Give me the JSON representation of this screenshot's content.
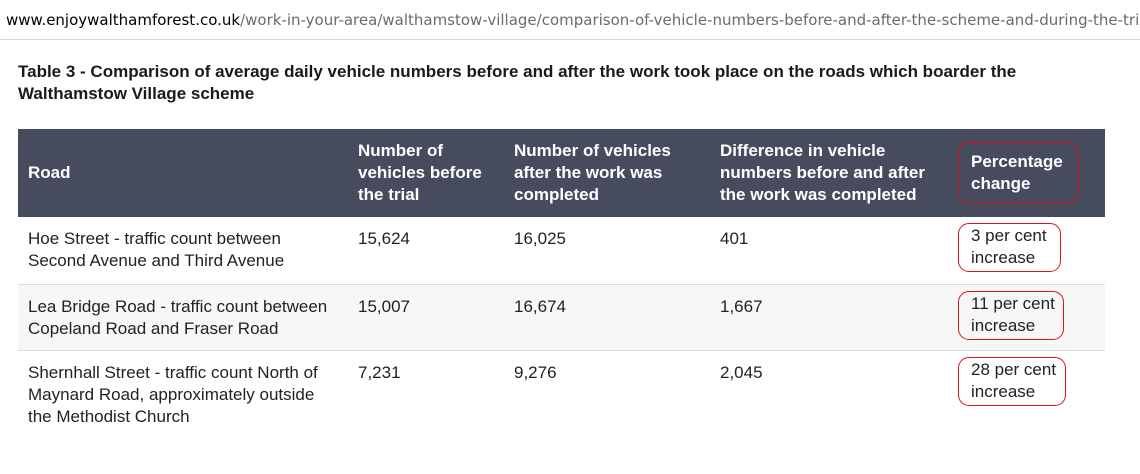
{
  "browser": {
    "url_host": "www.enjoywalthamforest.co.uk",
    "url_path": "/work-in-your-area/walthamstow-village/comparison-of-vehicle-numbers-before-and-after-the-scheme-and-during-the-trial/"
  },
  "table": {
    "caption": "Table 3 - Comparison of average daily vehicle numbers before and after the work took place on the roads which boarder the Walthamstow Village scheme",
    "headers": [
      "Road",
      "Number of vehicles before the trial",
      "Number of vehicles after the work was completed",
      "Difference in vehicle numbers before and after the work was completed",
      "Percentage change"
    ],
    "rows": [
      {
        "road": "Hoe Street - traffic count between Second Avenue and Third Avenue",
        "before": "15,624",
        "after": "16,025",
        "difference": "401",
        "change": "3 per cent increase"
      },
      {
        "road": "Lea Bridge Road - traffic count between Copeland Road and Fraser Road",
        "before": "15,007",
        "after": "16,674",
        "difference": "1,667",
        "change": "11 per cent increase"
      },
      {
        "road": "Shernhall Street - traffic count North of Maynard Road, approximately outside the Methodist Church",
        "before": "7,231",
        "after": "9,276",
        "difference": "2,045",
        "change": "28 per cent increase"
      }
    ]
  },
  "colors": {
    "header_bg": "#464b5e",
    "annotation": "#d9141e"
  }
}
